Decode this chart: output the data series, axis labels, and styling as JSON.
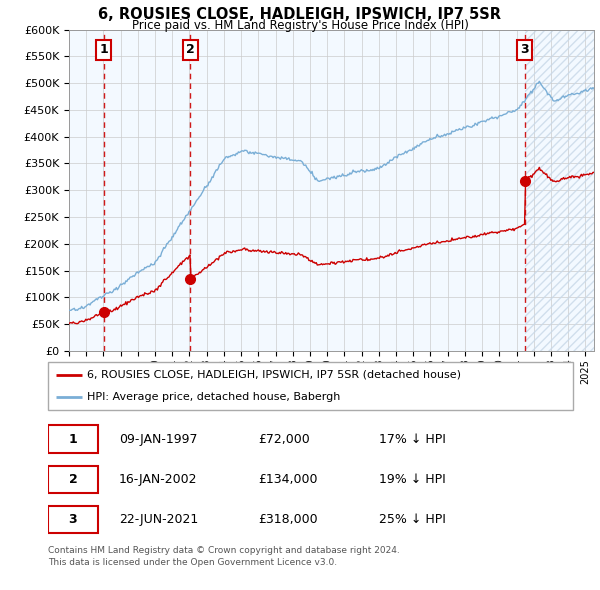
{
  "title": "6, ROUSIES CLOSE, HADLEIGH, IPSWICH, IP7 5SR",
  "subtitle": "Price paid vs. HM Land Registry's House Price Index (HPI)",
  "legend_label1": "6, ROUSIES CLOSE, HADLEIGH, IPSWICH, IP7 5SR (detached house)",
  "legend_label2": "HPI: Average price, detached house, Babergh",
  "footer1": "Contains HM Land Registry data © Crown copyright and database right 2024.",
  "footer2": "This data is licensed under the Open Government Licence v3.0.",
  "table": [
    {
      "num": "1",
      "date": "09-JAN-1997",
      "price": "£72,000",
      "hpi": "17% ↓ HPI"
    },
    {
      "num": "2",
      "date": "16-JAN-2002",
      "price": "£134,000",
      "hpi": "19% ↓ HPI"
    },
    {
      "num": "3",
      "date": "22-JUN-2021",
      "price": "£318,000",
      "hpi": "25% ↓ HPI"
    }
  ],
  "sale_points": [
    {
      "year": 1997.03,
      "price": 72000,
      "label": "1"
    },
    {
      "year": 2002.04,
      "price": 134000,
      "label": "2"
    },
    {
      "year": 2021.47,
      "price": 318000,
      "label": "3"
    }
  ],
  "hpi_color": "#7aaed6",
  "price_color": "#cc0000",
  "sale_marker_color": "#cc0000",
  "dashed_line_color": "#cc0000",
  "box_color": "#cc0000",
  "shade_color": "#ddeeff",
  "hatch_color": "#c8d8e8",
  "ylim_max": 600000,
  "ytick_step": 50000,
  "xmin": 1995.0,
  "xmax": 2025.5
}
